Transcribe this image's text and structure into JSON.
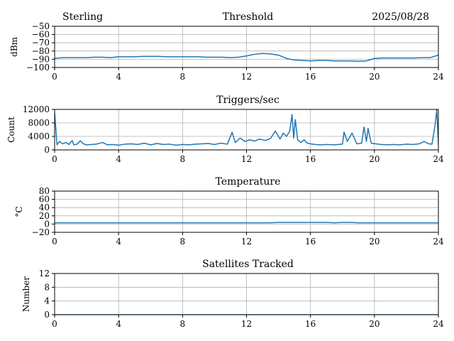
{
  "header": {
    "station": "Sterling",
    "date": "2025/08/28"
  },
  "chart_data": [
    {
      "type": "line",
      "title": "Threshold",
      "ylabel": "dBm",
      "xlabel": "",
      "xlim": [
        0,
        24
      ],
      "ylim": [
        -100,
        -50
      ],
      "xticks": [
        0,
        4,
        8,
        12,
        16,
        20,
        24
      ],
      "yticks": [
        -100,
        -90,
        -80,
        -70,
        -60,
        -50
      ],
      "ytick_labels": [
        "−100",
        "−90",
        "−80",
        "−70",
        "−60",
        "−50"
      ],
      "grid": true,
      "color": "#1f77b4",
      "series": [
        {
          "x": [
            0,
            0.5,
            1,
            1.5,
            2,
            2.5,
            3,
            3.5,
            4,
            4.5,
            5,
            5.5,
            6,
            6.5,
            7,
            7.5,
            8,
            8.5,
            9,
            9.5,
            10,
            10.5,
            11,
            11.5,
            12,
            12.5,
            13,
            13.5,
            14,
            14.5,
            15,
            15.5,
            16,
            16.5,
            17,
            17.5,
            18,
            18.5,
            19,
            19.5,
            20,
            20.5,
            21,
            21.5,
            22,
            22.5,
            23,
            23.5,
            24
          ],
          "y": [
            -89,
            -88,
            -88,
            -88,
            -88,
            -87.5,
            -87.5,
            -88,
            -87,
            -87,
            -87,
            -86.5,
            -86.5,
            -86.5,
            -87,
            -87,
            -87,
            -87,
            -87,
            -87.5,
            -87.5,
            -87.5,
            -88,
            -87.5,
            -86,
            -84,
            -83,
            -83.5,
            -85,
            -89,
            -91,
            -91.5,
            -92,
            -91.5,
            -91.5,
            -92,
            -92,
            -92,
            -92.5,
            -92,
            -89,
            -88.5,
            -88.5,
            -88.5,
            -88.5,
            -88.5,
            -88,
            -88,
            -85
          ]
        }
      ]
    },
    {
      "type": "line",
      "title": "Triggers/sec",
      "ylabel": "Count",
      "xlabel": "",
      "xlim": [
        0,
        24
      ],
      "ylim": [
        0,
        12000
      ],
      "xticks": [
        0,
        4,
        8,
        12,
        16,
        20,
        24
      ],
      "yticks": [
        0,
        4000,
        8000,
        12000
      ],
      "ytick_labels": [
        "0",
        "4000",
        "8000",
        "12000"
      ],
      "grid": true,
      "color": "#1f77b4",
      "series": [
        {
          "x": [
            0,
            0.15,
            0.3,
            0.5,
            0.7,
            0.9,
            1.1,
            1.2,
            1.4,
            1.6,
            1.8,
            2.0,
            2.3,
            2.6,
            3.0,
            3.3,
            3.6,
            4.0,
            4.4,
            4.8,
            5.2,
            5.6,
            6.0,
            6.4,
            6.8,
            7.2,
            7.6,
            8.0,
            8.4,
            8.8,
            9.2,
            9.6,
            10.0,
            10.4,
            10.8,
            11.1,
            11.3,
            11.6,
            11.9,
            12.2,
            12.5,
            12.8,
            13.2,
            13.5,
            13.8,
            14.1,
            14.3,
            14.5,
            14.7,
            14.85,
            14.95,
            15.05,
            15.2,
            15.4,
            15.6,
            15.8,
            16.0,
            16.3,
            16.6,
            17.0,
            17.5,
            18.0,
            18.1,
            18.3,
            18.6,
            18.9,
            19.2,
            19.35,
            19.5,
            19.6,
            19.8,
            20.1,
            20.4,
            20.8,
            21.2,
            21.6,
            22.0,
            22.4,
            22.8,
            23.1,
            23.4,
            23.6,
            23.8,
            23.9,
            24.0
          ],
          "y": [
            11000,
            1500,
            2500,
            1800,
            2200,
            1600,
            2800,
            1500,
            1700,
            2700,
            1800,
            1500,
            1600,
            1700,
            2200,
            1500,
            1600,
            1400,
            1700,
            1800,
            1600,
            2000,
            1500,
            1900,
            1600,
            1700,
            1400,
            1600,
            1500,
            1700,
            1800,
            1900,
            1600,
            2000,
            1700,
            5200,
            2200,
            3500,
            2500,
            3000,
            2600,
            3200,
            2800,
            3400,
            5600,
            3200,
            5000,
            4000,
            5500,
            10500,
            3500,
            9000,
            3000,
            2200,
            3000,
            2000,
            1800,
            1600,
            1500,
            1600,
            1500,
            1700,
            5300,
            2500,
            5000,
            1800,
            2000,
            6800,
            2500,
            6400,
            2000,
            1800,
            1600,
            1500,
            1600,
            1500,
            1700,
            1600,
            1800,
            2500,
            1800,
            1700,
            7600,
            12000,
            1500
          ]
        }
      ]
    },
    {
      "type": "line",
      "title": "Temperature",
      "ylabel": "°C",
      "xlabel": "",
      "xlim": [
        0,
        24
      ],
      "ylim": [
        -20,
        80
      ],
      "xticks": [
        0,
        4,
        8,
        12,
        16,
        20,
        24
      ],
      "yticks": [
        -20,
        0,
        20,
        40,
        60,
        80
      ],
      "ytick_labels": [
        "−20",
        "0",
        "20",
        "40",
        "60",
        "80"
      ],
      "grid": true,
      "color": "#1f77b4",
      "series": [
        {
          "x": [
            0,
            2,
            4,
            6,
            8,
            10,
            12,
            13.5,
            14,
            15,
            16,
            17,
            17.5,
            18,
            18.5,
            19,
            20,
            22,
            24
          ],
          "y": [
            3,
            3,
            3,
            3,
            3,
            3,
            3,
            3,
            4,
            4,
            4,
            4,
            3,
            4,
            4,
            3,
            3,
            3,
            3
          ]
        }
      ]
    },
    {
      "type": "line",
      "title": "Satellites Tracked",
      "ylabel": "Number",
      "xlabel": "",
      "xlim": [
        0,
        24
      ],
      "ylim": [
        0,
        12
      ],
      "xticks": [
        0,
        4,
        8,
        12,
        16,
        20,
        24
      ],
      "yticks": [
        0,
        4,
        8,
        12
      ],
      "ytick_labels": [
        "0",
        "4",
        "8",
        "12"
      ],
      "grid": true,
      "color": "#1f77b4",
      "series": [
        {
          "x": [
            0,
            24
          ],
          "y": [
            0,
            0
          ]
        }
      ]
    }
  ]
}
